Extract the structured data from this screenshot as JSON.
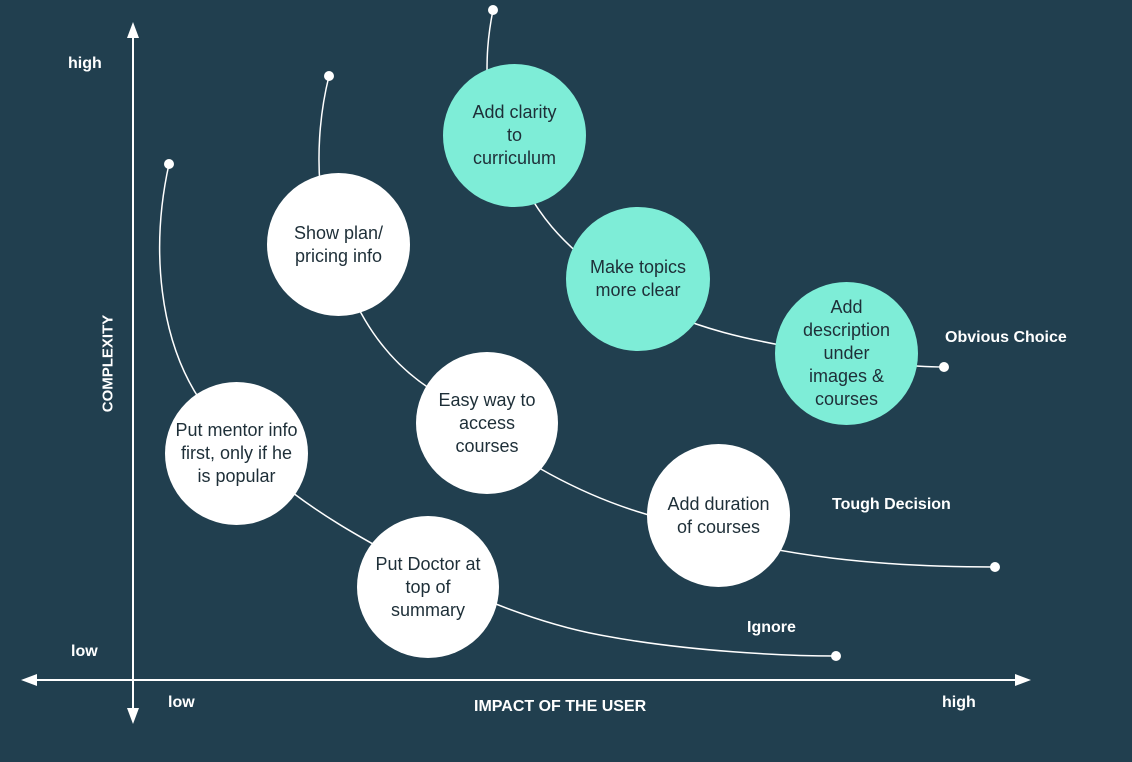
{
  "axes": {
    "y_title": "COMPLEXITY",
    "y_high": "high",
    "y_low": "low",
    "x_title": "IMPACT OF THE USER",
    "x_low": "low",
    "x_high": "high"
  },
  "curves": [
    {
      "label": "Ignore"
    },
    {
      "label": "Tough Decision"
    },
    {
      "label": "Obvious Choice"
    }
  ],
  "items": [
    {
      "text": "Put mentor info first, only if he is popular",
      "curve": "Ignore"
    },
    {
      "text": "Put Doctor at top of summary",
      "curve": "Ignore"
    },
    {
      "text": "Show plan/ pricing info",
      "curve": "Tough Decision"
    },
    {
      "text": "Easy way to access courses",
      "curve": "Tough Decision"
    },
    {
      "text": "Add duration of courses",
      "curve": "Tough Decision"
    },
    {
      "text": "Add clarity to curriculum",
      "curve": "Obvious Choice"
    },
    {
      "text": "Make topics more clear",
      "curve": "Obvious Choice"
    },
    {
      "text": "Add description under images & courses",
      "curve": "Obvious Choice"
    }
  ],
  "colors": {
    "background": "#213f4f",
    "line": "#ffffff",
    "circle_default": "#ffffff",
    "circle_highlight": "#7eedd7",
    "text_dark": "#1e2f38"
  }
}
